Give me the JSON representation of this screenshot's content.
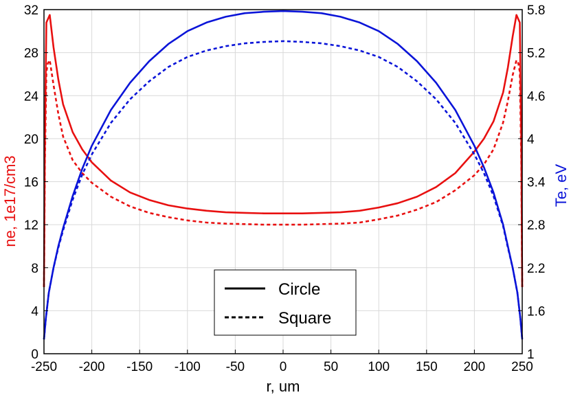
{
  "chart_data": {
    "type": "line",
    "xlabel": "r, um",
    "ylabel_left": "ne, 1e17/cm3",
    "ylabel_right": "Te, eV",
    "xlim": [
      -250,
      250
    ],
    "ylim_left": [
      0,
      32
    ],
    "ylim_right": [
      1,
      5.8
    ],
    "x_ticks": [
      -250,
      -200,
      -150,
      -100,
      -50,
      0,
      50,
      100,
      150,
      200,
      250
    ],
    "x_tick_labels": [
      "-250",
      "-200",
      "-150",
      "-100",
      "-50",
      "0",
      "50",
      "100",
      "150",
      "200",
      "250"
    ],
    "y_left_ticks": [
      0,
      4,
      8,
      12,
      16,
      20,
      24,
      28,
      32
    ],
    "y_left_tick_labels": [
      "0",
      "4",
      "8",
      "12",
      "16",
      "20",
      "24",
      "28",
      "32"
    ],
    "y_right_ticks": [
      1,
      1.6,
      2.2,
      2.8,
      3.4,
      4,
      4.6,
      5.2,
      5.8
    ],
    "y_right_tick_labels": [
      "1",
      "1.6",
      "2.2",
      "2.8",
      "3.4",
      "4",
      "4.6",
      "5.2",
      "5.8"
    ],
    "grid": true,
    "legend_position": "bottom-center",
    "legend": [
      {
        "label": "Circle",
        "style": "solid"
      },
      {
        "label": "Square",
        "style": "dashed"
      }
    ],
    "colors": {
      "ne": "#e81010",
      "te": "#0a14d8",
      "axis_left": "#e81010",
      "axis_right": "#0a14d8"
    },
    "series": [
      {
        "quantity": "ne",
        "style": "solid",
        "axis": "left",
        "x": [
          -250,
          -249,
          -247.5,
          -246,
          -244,
          -240,
          -235,
          -230,
          -220,
          -210,
          -200,
          -180,
          -160,
          -140,
          -120,
          -100,
          -80,
          -60,
          -40,
          -20,
          0,
          20,
          40,
          60,
          80,
          100,
          120,
          140,
          160,
          180,
          200,
          210,
          220,
          230,
          235,
          240,
          244,
          246,
          247.5,
          249,
          250
        ],
        "y": [
          6.2,
          20,
          30.8,
          31.1,
          31.5,
          28.5,
          25.5,
          23.2,
          20.6,
          19.0,
          17.8,
          16.1,
          15.0,
          14.3,
          13.8,
          13.5,
          13.3,
          13.15,
          13.1,
          13.05,
          13.05,
          13.05,
          13.1,
          13.15,
          13.3,
          13.6,
          14.0,
          14.6,
          15.5,
          16.8,
          18.8,
          20.0,
          21.6,
          24.3,
          26.6,
          29.5,
          31.5,
          31.1,
          30.8,
          20,
          6.2
        ]
      },
      {
        "quantity": "ne",
        "style": "dashed",
        "axis": "left",
        "x": [
          -250,
          -249,
          -247.5,
          -246,
          -244,
          -240,
          -235,
          -230,
          -220,
          -210,
          -200,
          -180,
          -160,
          -140,
          -120,
          -100,
          -80,
          -60,
          -40,
          -20,
          0,
          20,
          40,
          60,
          80,
          100,
          120,
          140,
          160,
          180,
          200,
          210,
          220,
          230,
          235,
          240,
          244,
          246,
          247.5,
          249,
          250
        ],
        "y": [
          6.2,
          18,
          26.2,
          27.0,
          27.3,
          25.0,
          22.3,
          20.2,
          18.0,
          16.8,
          15.9,
          14.6,
          13.7,
          13.1,
          12.7,
          12.4,
          12.2,
          12.1,
          12.05,
          12.0,
          12.0,
          12.0,
          12.05,
          12.1,
          12.2,
          12.5,
          12.85,
          13.4,
          14.1,
          15.2,
          16.6,
          17.6,
          19.0,
          21.5,
          23.5,
          25.9,
          27.3,
          27.0,
          26.2,
          18,
          6.2
        ]
      },
      {
        "quantity": "Te",
        "style": "solid",
        "axis": "right",
        "x": [
          -250,
          -248,
          -245,
          -240,
          -235,
          -230,
          -220,
          -210,
          -200,
          -180,
          -160,
          -140,
          -120,
          -100,
          -80,
          -60,
          -40,
          -20,
          0,
          20,
          40,
          60,
          80,
          100,
          120,
          140,
          160,
          180,
          200,
          210,
          220,
          230,
          235,
          240,
          245,
          248,
          250
        ],
        "y": [
          1.2,
          1.5,
          1.85,
          2.2,
          2.5,
          2.75,
          3.2,
          3.58,
          3.9,
          4.4,
          4.78,
          5.08,
          5.32,
          5.5,
          5.62,
          5.7,
          5.75,
          5.77,
          5.78,
          5.77,
          5.75,
          5.7,
          5.62,
          5.5,
          5.32,
          5.08,
          4.78,
          4.4,
          3.9,
          3.6,
          3.25,
          2.8,
          2.5,
          2.2,
          1.85,
          1.5,
          1.2
        ]
      },
      {
        "quantity": "Te",
        "style": "dashed",
        "axis": "right",
        "x": [
          -250,
          -248,
          -245,
          -240,
          -235,
          -230,
          -220,
          -210,
          -200,
          -180,
          -160,
          -140,
          -120,
          -100,
          -80,
          -60,
          -40,
          -20,
          0,
          20,
          40,
          60,
          80,
          100,
          120,
          140,
          160,
          180,
          200,
          210,
          220,
          230,
          235,
          240,
          245,
          248,
          250
        ],
        "y": [
          1.2,
          1.5,
          1.85,
          2.2,
          2.48,
          2.72,
          3.15,
          3.5,
          3.78,
          4.22,
          4.55,
          4.8,
          5.0,
          5.14,
          5.23,
          5.29,
          5.33,
          5.35,
          5.36,
          5.35,
          5.33,
          5.29,
          5.23,
          5.14,
          5.0,
          4.8,
          4.55,
          4.22,
          3.78,
          3.52,
          3.2,
          2.78,
          2.48,
          2.2,
          1.85,
          1.5,
          1.2
        ]
      }
    ]
  }
}
